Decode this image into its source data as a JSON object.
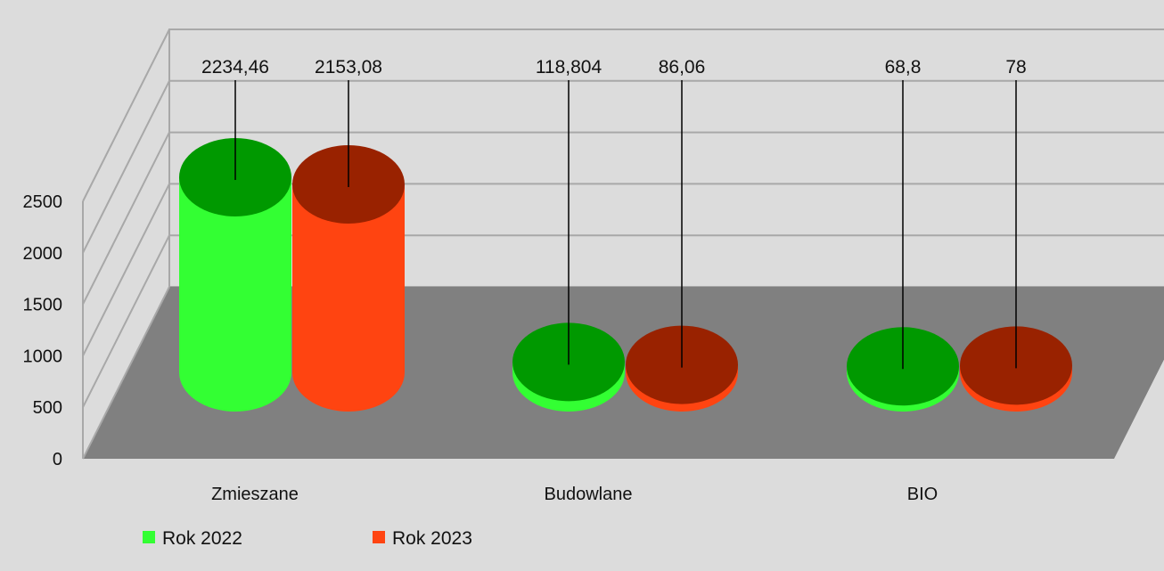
{
  "chart_data": {
    "type": "bar",
    "style": "3d-cylinder",
    "title": "",
    "xlabel": "",
    "ylabel": "",
    "categories": [
      "Zmieszane",
      "Budowlane",
      "BIO"
    ],
    "series": [
      {
        "name": "Rok 2022",
        "values": [
          2234.46,
          118.804,
          68.8
        ],
        "labels": [
          "2234,46",
          "118,804",
          "68,8"
        ]
      },
      {
        "name": "Rok 2023",
        "values": [
          2153.08,
          86.06,
          78
        ],
        "labels": [
          "2153,08",
          "86,06",
          "78"
        ]
      }
    ],
    "ylim": [
      0,
      2500
    ],
    "yticks": [
      "0",
      "500",
      "1000",
      "1500",
      "2000",
      "2500"
    ],
    "grid": true,
    "legend_position": "bottom",
    "colors": {
      "series_side": [
        "#33ff33",
        "#ff4411"
      ],
      "series_top": [
        "#009900",
        "#992200"
      ],
      "back_wall": "#dcdcdc",
      "floor": "#808080",
      "grid": "#a8a8a8"
    }
  }
}
